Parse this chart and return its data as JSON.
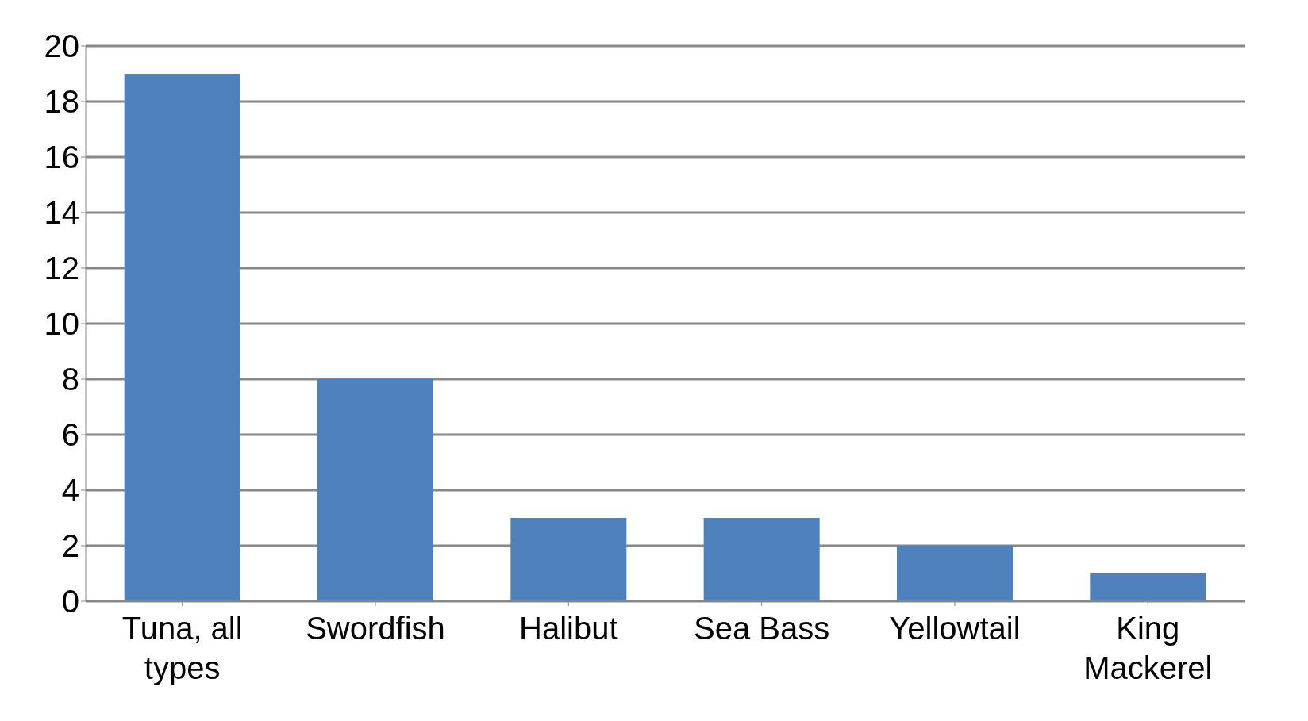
{
  "chart_data": {
    "type": "bar",
    "categories": [
      "Tuna, all types",
      "Swordfish",
      "Halibut",
      "Sea Bass",
      "Yellowtail",
      "King Mackerel"
    ],
    "values": [
      19,
      8,
      3,
      3,
      2,
      1
    ],
    "color": "#4f81bd",
    "ylim": [
      0,
      20
    ],
    "yticks": [
      0,
      2,
      4,
      6,
      8,
      10,
      12,
      14,
      16,
      18,
      20
    ],
    "grid": "y",
    "legend": false
  }
}
